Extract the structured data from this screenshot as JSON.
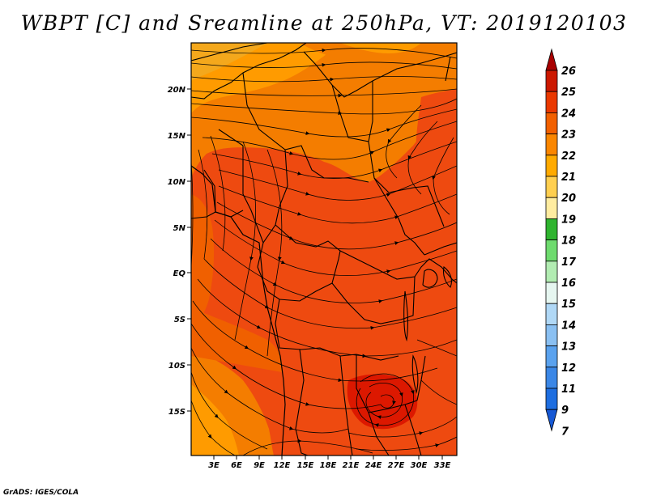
{
  "title": "WBPT [C] and Sreamline at 250hPa, VT: 2019120103",
  "credit": "GrADS: IGES/COLA",
  "map": {
    "lat_ticks": [
      "20N",
      "15N",
      "10N",
      "5N",
      "EQ",
      "5S",
      "10S",
      "15S"
    ],
    "lon_ticks": [
      "3E",
      "6E",
      "9E",
      "12E",
      "15E",
      "18E",
      "21E",
      "24E",
      "27E",
      "30E",
      "33E"
    ],
    "fill_colors": {
      "c20": "#f4a81c",
      "c21": "#ff9b00",
      "c22": "#f47d00",
      "c23": "#f06000",
      "c24": "#ee4a10",
      "c25": "#dc1800"
    }
  },
  "colorbar": {
    "labels": [
      "26",
      "25",
      "24",
      "23",
      "22",
      "21",
      "20",
      "19",
      "18",
      "17",
      "16",
      "15",
      "14",
      "13",
      "12",
      "11",
      "9",
      "7"
    ],
    "colors": [
      "#a80000",
      "#cc1800",
      "#ea3800",
      "#f26000",
      "#fa8600",
      "#ffaa00",
      "#ffcf50",
      "#ffeca0",
      "#2fb42f",
      "#6edb6e",
      "#b2ecb2",
      "#e6f6f0",
      "#b0d8f6",
      "#8ac0f2",
      "#5aa2ee",
      "#3b87e6",
      "#1e6ee0",
      "#1658d4"
    ]
  }
}
